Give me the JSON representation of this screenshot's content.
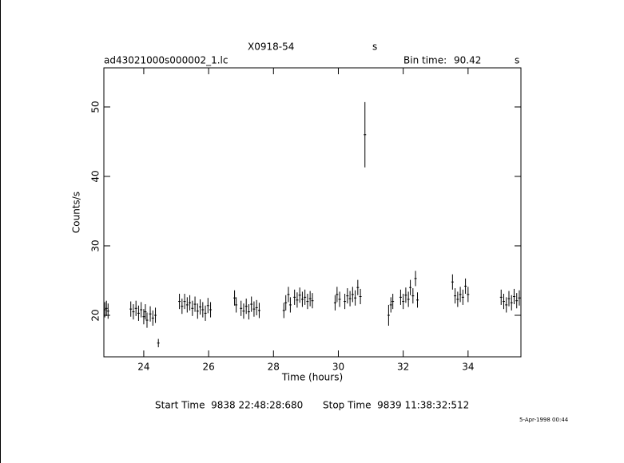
{
  "chart_data": {
    "type": "scatter",
    "title": "X0918-54",
    "title_unit": "s",
    "subtitle": "ad43021000s000002_1.lc",
    "bin_time_label": "Bin time:",
    "bin_time": "90.42",
    "bin_time_unit": "s",
    "xlabel": "Time (hours)",
    "ylabel": "Counts/s",
    "start_time": "Start Time  9838 22:48:28:680",
    "stop_time": "Stop Time  9839 11:38:32:512",
    "date": "5-Apr-1998 00:44",
    "xlim": [
      22.77,
      35.63
    ],
    "ylim": [
      14.02,
      55.63
    ],
    "xticks": [
      24,
      26,
      28,
      30,
      32,
      34
    ],
    "yticks": [
      20,
      30,
      40,
      50
    ],
    "color": "#000000",
    "x": [
      22.8,
      22.85,
      22.9,
      23.6,
      23.68,
      23.76,
      23.84,
      23.92,
      24.0,
      24.05,
      24.1,
      24.2,
      24.28,
      24.36,
      24.45,
      25.1,
      25.18,
      25.26,
      25.34,
      25.42,
      25.5,
      25.58,
      25.66,
      25.74,
      25.82,
      25.9,
      25.98,
      26.06,
      26.8,
      26.85,
      27.0,
      27.08,
      27.16,
      27.24,
      27.32,
      27.4,
      27.48,
      27.56,
      28.32,
      28.38,
      28.46,
      28.52,
      28.65,
      28.73,
      28.81,
      28.89,
      28.97,
      29.05,
      29.13,
      29.2,
      29.9,
      29.96,
      30.04,
      30.2,
      30.28,
      30.36,
      30.44,
      30.52,
      30.6,
      30.68,
      30.82,
      31.55,
      31.62,
      31.68,
      31.92,
      32.0,
      32.08,
      32.16,
      32.22,
      32.3,
      32.38,
      32.44,
      33.52,
      33.6,
      33.68,
      33.76,
      33.84,
      33.92,
      34.0,
      35.02,
      35.1,
      35.18,
      35.26,
      35.34,
      35.42,
      35.5,
      35.58
    ],
    "values": [
      20.8,
      21.0,
      20.6,
      20.9,
      20.5,
      21.0,
      20.3,
      20.8,
      19.8,
      20.5,
      19.3,
      20.2,
      19.6,
      20.0,
      16.0,
      22.0,
      21.3,
      22.0,
      21.5,
      21.8,
      21.0,
      21.6,
      20.6,
      21.2,
      20.8,
      20.3,
      21.4,
      20.8,
      22.5,
      21.5,
      21.0,
      20.6,
      21.3,
      20.5,
      21.6,
      20.9,
      21.1,
      20.7,
      20.7,
      21.8,
      23.0,
      21.5,
      22.6,
      22.2,
      22.9,
      22.3,
      22.6,
      22.0,
      22.4,
      22.1,
      21.8,
      23.0,
      22.3,
      22.0,
      22.8,
      22.4,
      23.0,
      22.5,
      24.0,
      22.7,
      46.0,
      20.0,
      21.5,
      22.0,
      22.6,
      22.0,
      22.9,
      22.3,
      24.0,
      22.8,
      25.3,
      22.2,
      24.8,
      22.8,
      22.3,
      23.0,
      22.6,
      24.2,
      23.0,
      22.6,
      22.0,
      21.5,
      22.4,
      21.8,
      22.7,
      22.1,
      22.5
    ],
    "errors": [
      1.1,
      1.1,
      1.1,
      1.1,
      1.1,
      1.1,
      1.1,
      1.1,
      1.1,
      1.1,
      1.1,
      1.1,
      1.1,
      1.1,
      0.6,
      1.1,
      1.1,
      1.1,
      1.1,
      1.1,
      1.1,
      1.1,
      1.1,
      1.1,
      1.1,
      1.1,
      1.1,
      1.1,
      1.1,
      1.1,
      1.1,
      1.1,
      1.1,
      1.1,
      1.1,
      1.1,
      1.1,
      1.1,
      1.1,
      1.1,
      1.1,
      1.1,
      1.1,
      1.1,
      1.1,
      1.1,
      1.1,
      1.1,
      1.1,
      1.1,
      1.1,
      1.1,
      1.1,
      1.1,
      1.1,
      1.1,
      1.1,
      1.1,
      1.1,
      1.1,
      4.7,
      1.5,
      1.1,
      1.1,
      1.1,
      1.1,
      1.1,
      1.1,
      1.1,
      1.1,
      1.1,
      1.1,
      1.1,
      1.1,
      1.1,
      1.1,
      1.1,
      1.1,
      1.1,
      1.1,
      1.1,
      1.1,
      1.1,
      1.1,
      1.1,
      1.1,
      1.1
    ]
  }
}
